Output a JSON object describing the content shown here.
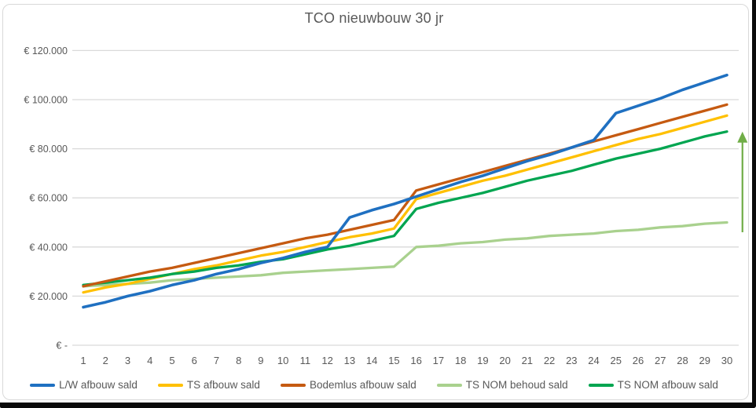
{
  "title": "TCO nieuwbouw 30 jr",
  "axes": {
    "y_ticks": [
      {
        "value": 0,
        "label": "€ -"
      },
      {
        "value": 20000,
        "label": "€ 20.000"
      },
      {
        "value": 40000,
        "label": "€ 40.000"
      },
      {
        "value": 60000,
        "label": "€ 60.000"
      },
      {
        "value": 80000,
        "label": "€ 80.000"
      },
      {
        "value": 100000,
        "label": "€ 100.000"
      },
      {
        "value": 120000,
        "label": "€ 120.000"
      }
    ],
    "x_categories": [
      "1",
      "2",
      "3",
      "4",
      "5",
      "6",
      "7",
      "8",
      "9",
      "10",
      "11",
      "12",
      "13",
      "14",
      "15",
      "16",
      "17",
      "18",
      "19",
      "20",
      "21",
      "22",
      "23",
      "24",
      "25",
      "26",
      "27",
      "28",
      "29",
      "30"
    ]
  },
  "chart_data": {
    "type": "line",
    "title": "TCO nieuwbouw 30 jr",
    "x": [
      1,
      2,
      3,
      4,
      5,
      6,
      7,
      8,
      9,
      10,
      11,
      12,
      13,
      14,
      15,
      16,
      17,
      18,
      19,
      20,
      21,
      22,
      23,
      24,
      25,
      26,
      27,
      28,
      29,
      30
    ],
    "xlabel": "",
    "ylabel": "",
    "ylim": [
      0,
      120000
    ],
    "y_tick_step": 20000,
    "grid": true,
    "legend_position": "bottom",
    "colors": {
      "grid": "#d9d9d9",
      "text": "#595959",
      "annotation_arrow": "#70ad47"
    },
    "series": [
      {
        "name": "L/W afbouw sald",
        "color": "#1f70c1",
        "values": [
          15500,
          17500,
          20000,
          22000,
          24500,
          26500,
          29000,
          31000,
          33500,
          35500,
          38000,
          40000,
          52000,
          55000,
          57500,
          60500,
          63500,
          66500,
          69000,
          72000,
          75000,
          77500,
          80500,
          83500,
          94500,
          97500,
          100500,
          104000,
          107000,
          110000
        ]
      },
      {
        "name": "TS afbouw sald",
        "color": "#ffc000",
        "values": [
          21500,
          23500,
          25000,
          27000,
          29000,
          31000,
          32500,
          34500,
          36500,
          38000,
          40000,
          42000,
          44000,
          45500,
          47500,
          59500,
          62000,
          64500,
          67000,
          69000,
          71500,
          74000,
          76500,
          79000,
          81500,
          84000,
          86000,
          88500,
          91000,
          93500
        ]
      },
      {
        "name": "Bodemlus afbouw sald",
        "color": "#c55a11",
        "values": [
          24000,
          26000,
          28000,
          30000,
          31500,
          33500,
          35500,
          37500,
          39500,
          41500,
          43500,
          45000,
          47000,
          49000,
          51000,
          63000,
          65500,
          68000,
          70500,
          73000,
          75500,
          78000,
          80500,
          83000,
          85500,
          88000,
          90500,
          93000,
          95500,
          98000
        ]
      },
      {
        "name": "TS NOM behoud sald",
        "color": "#a9d18e",
        "values": [
          24000,
          24500,
          25000,
          25500,
          26500,
          27000,
          27500,
          28000,
          28500,
          29500,
          30000,
          30500,
          31000,
          31500,
          32000,
          40000,
          40500,
          41500,
          42000,
          43000,
          43500,
          44500,
          45000,
          45500,
          46500,
          47000,
          48000,
          48500,
          49500,
          50000
        ]
      },
      {
        "name": "TS NOM afbouw sald",
        "color": "#00a550",
        "values": [
          24500,
          25500,
          26500,
          27500,
          29000,
          30000,
          31500,
          32500,
          34000,
          35000,
          37000,
          39000,
          40500,
          42500,
          44500,
          55500,
          58000,
          60000,
          62000,
          64500,
          67000,
          69000,
          71000,
          73500,
          76000,
          78000,
          80000,
          82500,
          85000,
          87000
        ]
      }
    ],
    "annotation": {
      "type": "up-arrow",
      "x": 30.7,
      "from_value": 46000,
      "to_value": 87000,
      "color": "#70ad47"
    }
  }
}
